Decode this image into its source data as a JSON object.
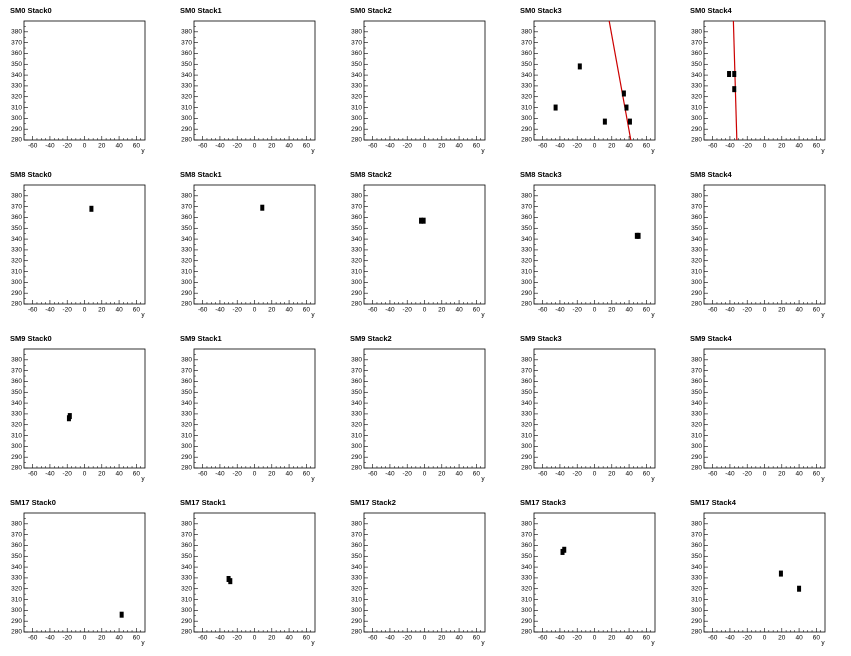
{
  "chart_data": [
    {
      "type": "scatter",
      "title": "SM0 Stack0",
      "xlabel": "y",
      "xlim": [
        -70,
        70
      ],
      "ylim": [
        280,
        390
      ],
      "xticks": [
        -60,
        -40,
        -20,
        0,
        20,
        40,
        60
      ],
      "yticks": [
        280,
        290,
        300,
        310,
        320,
        330,
        340,
        350,
        360,
        370,
        380
      ],
      "color": "#000000",
      "x": [],
      "values": []
    },
    {
      "type": "scatter",
      "title": "SM0 Stack1",
      "xlabel": "y",
      "xlim": [
        -70,
        70
      ],
      "ylim": [
        280,
        390
      ],
      "xticks": [
        -60,
        -40,
        -20,
        0,
        20,
        40,
        60
      ],
      "yticks": [
        280,
        290,
        300,
        310,
        320,
        330,
        340,
        350,
        360,
        370,
        380
      ],
      "color": "#000000",
      "x": [],
      "values": []
    },
    {
      "type": "scatter",
      "title": "SM0 Stack2",
      "xlabel": "y",
      "xlim": [
        -70,
        70
      ],
      "ylim": [
        280,
        390
      ],
      "xticks": [
        -60,
        -40,
        -20,
        0,
        20,
        40,
        60
      ],
      "yticks": [
        280,
        290,
        300,
        310,
        320,
        330,
        340,
        350,
        360,
        370,
        380
      ],
      "color": "#000000",
      "x": [],
      "values": []
    },
    {
      "type": "scatter",
      "title": "SM0 Stack3",
      "xlabel": "y",
      "xlim": [
        -70,
        70
      ],
      "ylim": [
        280,
        390
      ],
      "xticks": [
        -60,
        -40,
        -20,
        0,
        20,
        40,
        60
      ],
      "yticks": [
        280,
        290,
        300,
        310,
        320,
        330,
        340,
        350,
        360,
        370,
        380
      ],
      "color": "#000000",
      "x": [
        -45,
        -17,
        12,
        34,
        37,
        41
      ],
      "values": [
        310,
        348,
        297,
        323,
        310,
        297
      ],
      "fit_color": "#cc0000",
      "fit_x": [
        17,
        42
      ],
      "fit_y": [
        390,
        280
      ]
    },
    {
      "type": "scatter",
      "title": "SM0 Stack4",
      "xlabel": "y",
      "xlim": [
        -70,
        70
      ],
      "ylim": [
        280,
        390
      ],
      "xticks": [
        -60,
        -40,
        -20,
        0,
        20,
        40,
        60
      ],
      "yticks": [
        280,
        290,
        300,
        310,
        320,
        330,
        340,
        350,
        360,
        370,
        380
      ],
      "color": "#000000",
      "x": [
        -41,
        -35,
        -35
      ],
      "values": [
        341,
        341,
        327
      ],
      "fit_color": "#cc0000",
      "fit_x": [
        -36,
        -32
      ],
      "fit_y": [
        390,
        280
      ]
    },
    {
      "type": "scatter",
      "title": "SM8 Stack0",
      "xlabel": "y",
      "xlim": [
        -70,
        70
      ],
      "ylim": [
        280,
        390
      ],
      "xticks": [
        -60,
        -40,
        -20,
        0,
        20,
        40,
        60
      ],
      "yticks": [
        280,
        290,
        300,
        310,
        320,
        330,
        340,
        350,
        360,
        370,
        380
      ],
      "color": "#000000",
      "x": [
        8
      ],
      "values": [
        368
      ]
    },
    {
      "type": "scatter",
      "title": "SM8 Stack1",
      "xlabel": "y",
      "xlim": [
        -70,
        70
      ],
      "ylim": [
        280,
        390
      ],
      "xticks": [
        -60,
        -40,
        -20,
        0,
        20,
        40,
        60
      ],
      "yticks": [
        280,
        290,
        300,
        310,
        320,
        330,
        340,
        350,
        360,
        370,
        380
      ],
      "color": "#000000",
      "x": [
        9
      ],
      "values": [
        369
      ]
    },
    {
      "type": "scatter",
      "title": "SM8 Stack2",
      "xlabel": "y",
      "xlim": [
        -70,
        70
      ],
      "ylim": [
        280,
        390
      ],
      "xticks": [
        -60,
        -40,
        -20,
        0,
        20,
        40,
        60
      ],
      "yticks": [
        280,
        290,
        300,
        310,
        320,
        330,
        340,
        350,
        360,
        370,
        380
      ],
      "color": "#000000",
      "x": [
        -4,
        -1
      ],
      "values": [
        357,
        357
      ]
    },
    {
      "type": "scatter",
      "title": "SM8 Stack3",
      "xlabel": "y",
      "xlim": [
        -70,
        70
      ],
      "ylim": [
        280,
        390
      ],
      "xticks": [
        -60,
        -40,
        -20,
        0,
        20,
        40,
        60
      ],
      "yticks": [
        280,
        290,
        300,
        310,
        320,
        330,
        340,
        350,
        360,
        370,
        380
      ],
      "color": "#000000",
      "x": [
        49,
        51
      ],
      "values": [
        343,
        343
      ]
    },
    {
      "type": "scatter",
      "title": "SM8 Stack4",
      "xlabel": "y",
      "xlim": [
        -70,
        70
      ],
      "ylim": [
        280,
        390
      ],
      "xticks": [
        -60,
        -40,
        -20,
        0,
        20,
        40,
        60
      ],
      "yticks": [
        280,
        290,
        300,
        310,
        320,
        330,
        340,
        350,
        360,
        370,
        380
      ],
      "color": "#000000",
      "x": [],
      "values": []
    },
    {
      "type": "scatter",
      "title": "SM9 Stack0",
      "xlabel": "y",
      "xlim": [
        -70,
        70
      ],
      "ylim": [
        280,
        390
      ],
      "xticks": [
        -60,
        -40,
        -20,
        0,
        20,
        40,
        60
      ],
      "yticks": [
        280,
        290,
        300,
        310,
        320,
        330,
        340,
        350,
        360,
        370,
        380
      ],
      "color": "#000000",
      "x": [
        -18,
        -17
      ],
      "values": [
        326,
        328
      ]
    },
    {
      "type": "scatter",
      "title": "SM9 Stack1",
      "xlabel": "y",
      "xlim": [
        -70,
        70
      ],
      "ylim": [
        280,
        390
      ],
      "xticks": [
        -60,
        -40,
        -20,
        0,
        20,
        40,
        60
      ],
      "yticks": [
        280,
        290,
        300,
        310,
        320,
        330,
        340,
        350,
        360,
        370,
        380
      ],
      "color": "#000000",
      "x": [],
      "values": []
    },
    {
      "type": "scatter",
      "title": "SM9 Stack2",
      "xlabel": "y",
      "xlim": [
        -70,
        70
      ],
      "ylim": [
        280,
        390
      ],
      "xticks": [
        -60,
        -40,
        -20,
        0,
        20,
        40,
        60
      ],
      "yticks": [
        280,
        290,
        300,
        310,
        320,
        330,
        340,
        350,
        360,
        370,
        380
      ],
      "color": "#000000",
      "x": [],
      "values": []
    },
    {
      "type": "scatter",
      "title": "SM9 Stack3",
      "xlabel": "y",
      "xlim": [
        -70,
        70
      ],
      "ylim": [
        280,
        390
      ],
      "xticks": [
        -60,
        -40,
        -20,
        0,
        20,
        40,
        60
      ],
      "yticks": [
        280,
        290,
        300,
        310,
        320,
        330,
        340,
        350,
        360,
        370,
        380
      ],
      "color": "#000000",
      "x": [],
      "values": []
    },
    {
      "type": "scatter",
      "title": "SM9 Stack4",
      "xlabel": "y",
      "xlim": [
        -70,
        70
      ],
      "ylim": [
        280,
        390
      ],
      "xticks": [
        -60,
        -40,
        -20,
        0,
        20,
        40,
        60
      ],
      "yticks": [
        280,
        290,
        300,
        310,
        320,
        330,
        340,
        350,
        360,
        370,
        380
      ],
      "color": "#000000",
      "x": [],
      "values": []
    },
    {
      "type": "scatter",
      "title": "SM17 Stack0",
      "xlabel": "y",
      "xlim": [
        -70,
        70
      ],
      "ylim": [
        280,
        390
      ],
      "xticks": [
        -60,
        -40,
        -20,
        0,
        20,
        40,
        60
      ],
      "yticks": [
        280,
        290,
        300,
        310,
        320,
        330,
        340,
        350,
        360,
        370,
        380
      ],
      "color": "#000000",
      "x": [
        43
      ],
      "values": [
        296
      ]
    },
    {
      "type": "scatter",
      "title": "SM17 Stack1",
      "xlabel": "y",
      "xlim": [
        -70,
        70
      ],
      "ylim": [
        280,
        390
      ],
      "xticks": [
        -60,
        -40,
        -20,
        0,
        20,
        40,
        60
      ],
      "yticks": [
        280,
        290,
        300,
        310,
        320,
        330,
        340,
        350,
        360,
        370,
        380
      ],
      "color": "#000000",
      "x": [
        -30,
        -28
      ],
      "values": [
        329,
        327
      ]
    },
    {
      "type": "scatter",
      "title": "SM17 Stack2",
      "xlabel": "y",
      "xlim": [
        -70,
        70
      ],
      "ylim": [
        280,
        390
      ],
      "xticks": [
        -60,
        -40,
        -20,
        0,
        20,
        40,
        60
      ],
      "yticks": [
        280,
        290,
        300,
        310,
        320,
        330,
        340,
        350,
        360,
        370,
        380
      ],
      "color": "#000000",
      "x": [],
      "values": []
    },
    {
      "type": "scatter",
      "title": "SM17 Stack3",
      "xlabel": "y",
      "xlim": [
        -70,
        70
      ],
      "ylim": [
        280,
        390
      ],
      "xticks": [
        -60,
        -40,
        -20,
        0,
        20,
        40,
        60
      ],
      "yticks": [
        280,
        290,
        300,
        310,
        320,
        330,
        340,
        350,
        360,
        370,
        380
      ],
      "color": "#000000",
      "x": [
        -37,
        -35
      ],
      "values": [
        354,
        356
      ]
    },
    {
      "type": "scatter",
      "title": "SM17 Stack4",
      "xlabel": "y",
      "xlim": [
        -70,
        70
      ],
      "ylim": [
        280,
        390
      ],
      "xticks": [
        -60,
        -40,
        -20,
        0,
        20,
        40,
        60
      ],
      "yticks": [
        280,
        290,
        300,
        310,
        320,
        330,
        340,
        350,
        360,
        370,
        380
      ],
      "color": "#000000",
      "x": [
        19,
        40
      ],
      "values": [
        334,
        320
      ]
    }
  ]
}
